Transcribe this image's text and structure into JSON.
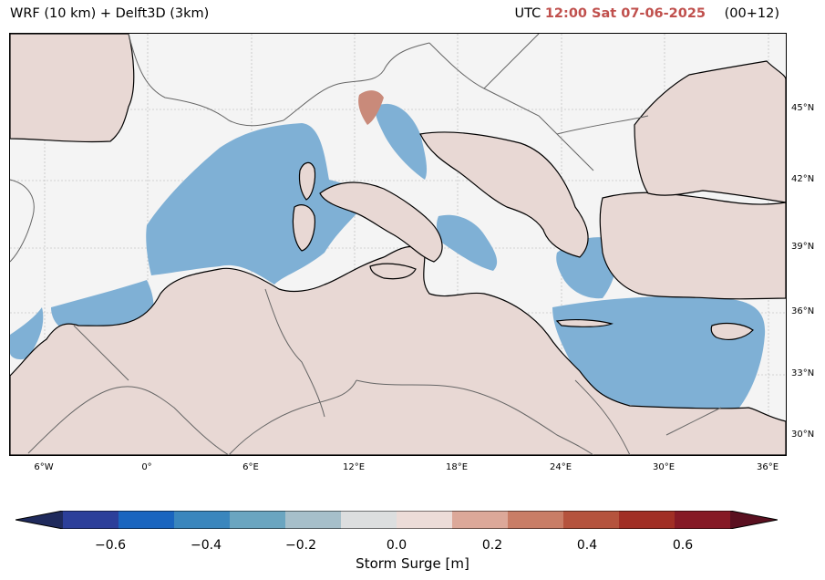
{
  "header": {
    "title_left": "WRF (10 km) + Delft3D (3km)",
    "utc_prefix": "UTC",
    "datetime": "12:00 Sat 07-06-2025",
    "run": "(00+12)"
  },
  "map": {
    "latitude_labels": [
      "45°N",
      "42°N",
      "39°N",
      "36°N",
      "33°N",
      "30°N"
    ],
    "longitude_labels": [
      "6°W",
      "0°",
      "6°E",
      "12°E",
      "18°E",
      "24°E",
      "30°E",
      "36°E"
    ],
    "colors": {
      "land": "#e8d8d4",
      "sea_negative": "#7fb0d5",
      "sea_positive": "#c98a7a",
      "background": "#f4f4f4",
      "coastline": "#000000",
      "borders": "#666666"
    }
  },
  "colorbar": {
    "label": "Storm Surge [m]",
    "ticks": [
      "−0.6",
      "−0.4",
      "−0.2",
      "0.0",
      "0.2",
      "0.4",
      "0.6"
    ],
    "min": -0.7,
    "max": 0.7,
    "colors": [
      "#1f2a5c",
      "#2c3f9a",
      "#1a65bf",
      "#3a86bd",
      "#6aa5c0",
      "#a6bfca",
      "#dcdedf",
      "#ecdcd8",
      "#dca899",
      "#c97d66",
      "#b5533d",
      "#a12f25",
      "#861a26",
      "#5a1020"
    ]
  }
}
